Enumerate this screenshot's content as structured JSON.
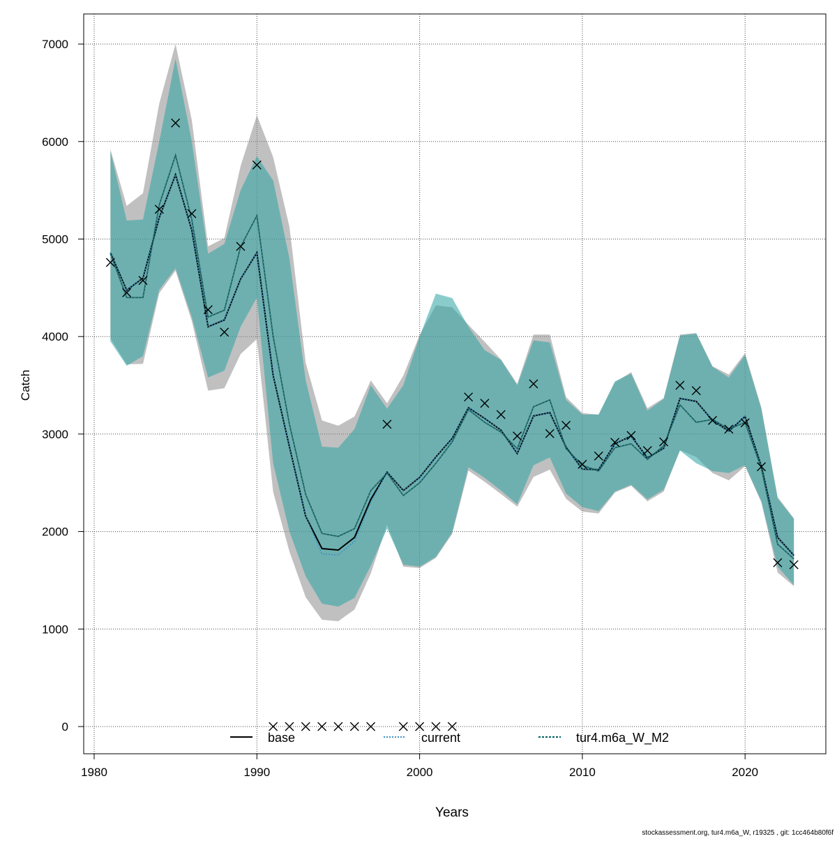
{
  "chart_data": {
    "type": "line",
    "title": "",
    "xlabel": "Years",
    "ylabel": "Catch",
    "xlim": [
      1979.4,
      2024.7
    ],
    "ylim": [
      -280,
      7300
    ],
    "xticks": [
      1980,
      1990,
      2000,
      2010,
      2020
    ],
    "yticks": [
      0,
      1000,
      2000,
      3000,
      4000,
      5000,
      6000,
      7000
    ],
    "grid": true,
    "legend_position": "bottom",
    "x": [
      1981,
      1982,
      1983,
      1984,
      1985,
      1986,
      1987,
      1988,
      1989,
      1990,
      1991,
      1992,
      1993,
      1994,
      1995,
      1996,
      1997,
      1998,
      1999,
      2000,
      2001,
      2002,
      2003,
      2004,
      2005,
      2006,
      2007,
      2008,
      2009,
      2010,
      2011,
      2012,
      2013,
      2014,
      2015,
      2016,
      2017,
      2018,
      2019,
      2020,
      2021,
      2022,
      2023
    ],
    "series": [
      {
        "name": "base",
        "color": "#000000",
        "style": "solid",
        "values": [
          4860,
          4475,
          4600,
          5220,
          5660,
          5090,
          4100,
          4170,
          4590,
          4860,
          3600,
          2870,
          2155,
          1825,
          1810,
          1940,
          2330,
          2610,
          2420,
          2555,
          2765,
          2955,
          3270,
          3160,
          3040,
          2800,
          3185,
          3220,
          2865,
          2640,
          2635,
          2900,
          2980,
          2755,
          2855,
          3365,
          3335,
          3140,
          3030,
          3180,
          2670,
          1940,
          1755
        ],
        "upper": [
          5920,
          5340,
          5470,
          6390,
          7000,
          6220,
          4925,
          5010,
          5750,
          6270,
          5840,
          5125,
          3730,
          3140,
          3085,
          3180,
          3550,
          3315,
          3600,
          4015,
          4320,
          4300,
          4120,
          3945,
          3765,
          3515,
          4020,
          4020,
          3380,
          3215,
          3200,
          3530,
          3635,
          3265,
          3370,
          4020,
          4035,
          3695,
          3610,
          3830,
          3270,
          2355,
          2135
        ],
        "lower": [
          3980,
          3715,
          3720,
          4445,
          4675,
          4160,
          3445,
          3470,
          3820,
          3975,
          2405,
          1795,
          1325,
          1095,
          1080,
          1200,
          1570,
          2070,
          1640,
          1625,
          1730,
          1975,
          2625,
          2510,
          2385,
          2255,
          2560,
          2635,
          2335,
          2205,
          2185,
          2400,
          2470,
          2310,
          2410,
          2835,
          2765,
          2600,
          2525,
          2670,
          2300,
          1580,
          1440
        ]
      },
      {
        "name": "current",
        "color": "#3a8fc4",
        "style": "dotted",
        "values": [
          4860,
          4475,
          4600,
          5220,
          5660,
          5090,
          4100,
          4170,
          4590,
          4860,
          3600,
          2870,
          2155,
          1770,
          1760,
          1900,
          2300,
          2610,
          2420,
          2555,
          2765,
          2955,
          3270,
          3160,
          3040,
          2800,
          3185,
          3220,
          2865,
          2640,
          2635,
          2900,
          2980,
          2755,
          2855,
          3365,
          3335,
          3140,
          3030,
          3180,
          2670,
          1940,
          1755
        ]
      },
      {
        "name": "tur4.m6a_W_M2",
        "color": "#00605f",
        "style": "dashed",
        "values": [
          4850,
          4400,
          4400,
          5350,
          5860,
          5200,
          4200,
          4270,
          4920,
          5240,
          4000,
          3100,
          2380,
          1980,
          1950,
          2030,
          2420,
          2600,
          2370,
          2500,
          2700,
          2920,
          3250,
          3120,
          3020,
          2850,
          3280,
          3350,
          2850,
          2680,
          2620,
          2860,
          2900,
          2740,
          2880,
          3300,
          3120,
          3150,
          3050,
          3120,
          2650,
          1870,
          1720
        ],
        "upper": [
          5900,
          5190,
          5200,
          6000,
          6850,
          6000,
          4850,
          4950,
          5500,
          5850,
          5600,
          4800,
          3550,
          2870,
          2860,
          3050,
          3500,
          3260,
          3500,
          4000,
          4440,
          4395,
          4100,
          3860,
          3760,
          3500,
          3960,
          3940,
          3350,
          3200,
          3200,
          3540,
          3620,
          3240,
          3360,
          4010,
          4030,
          3690,
          3580,
          3810,
          3260,
          2340,
          2130
        ],
        "lower": [
          3950,
          3700,
          3800,
          4480,
          4700,
          4200,
          3580,
          3650,
          4100,
          4400,
          2700,
          2000,
          1540,
          1260,
          1230,
          1320,
          1650,
          2030,
          1660,
          1640,
          1740,
          1990,
          2660,
          2550,
          2420,
          2280,
          2680,
          2760,
          2390,
          2250,
          2210,
          2410,
          2480,
          2330,
          2430,
          2830,
          2700,
          2620,
          2600,
          2680,
          2310,
          1640,
          1450
        ]
      }
    ],
    "observed": {
      "name": "observed catch",
      "marker": "x",
      "values": [
        4760,
        4450,
        4575,
        5305,
        6190,
        5260,
        4275,
        4045,
        4925,
        5760,
        0,
        0,
        0,
        0,
        0,
        0,
        0,
        3100,
        0,
        0,
        0,
        0,
        3380,
        3315,
        3200,
        2980,
        3515,
        3005,
        3090,
        2690,
        2775,
        2915,
        2985,
        2830,
        2920,
        3500,
        3445,
        3140,
        3050,
        3115,
        2665,
        1680,
        1660
      ]
    },
    "band_colors": {
      "base": "#8c8c8c",
      "model": "#2aa3a3"
    },
    "footer": "stockassessment.org, tur4.m6a_W, r19325 , git: 1cc464b80f6f"
  }
}
